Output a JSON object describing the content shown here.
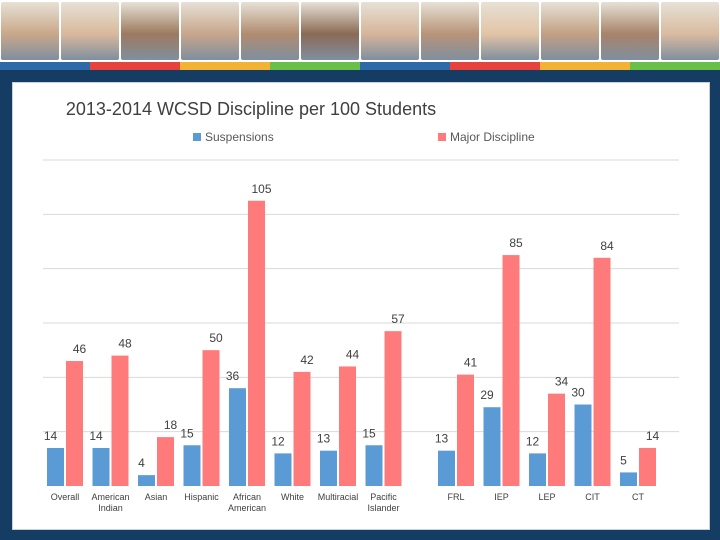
{
  "colors": {
    "frame": "#153d63",
    "suspensions": "#5b9bd5",
    "major_discipline": "#ff7b7b",
    "grid": "#d9d9d9",
    "banner_stripe": [
      "#2e6aa8",
      "#e8423f",
      "#f2b233",
      "#6abf4b",
      "#2e6aa8",
      "#e8423f",
      "#f2b233",
      "#6abf4b"
    ]
  },
  "chart_data": {
    "type": "bar",
    "title": "2013-2014 WCSD Discipline per 100 Students",
    "xlabel": "",
    "ylabel": "",
    "ylim": [
      0,
      120
    ],
    "grid": true,
    "legend_position": "top",
    "categories": [
      "Overall",
      "American Indian",
      "Asian",
      "Hispanic",
      "African American",
      "White",
      "Multiracial",
      "Pacific Islander",
      "FRL",
      "IEP",
      "LEP",
      "CIT",
      "CT"
    ],
    "category_lines": [
      [
        "Overall"
      ],
      [
        "American",
        "Indian"
      ],
      [
        "Asian"
      ],
      [
        "Hispanic"
      ],
      [
        "African",
        "American"
      ],
      [
        "White"
      ],
      [
        "Multiracial"
      ],
      [
        "Pacific",
        "Islander"
      ],
      [
        "FRL"
      ],
      [
        "IEP"
      ],
      [
        "LEP"
      ],
      [
        "CIT"
      ],
      [
        "CT"
      ]
    ],
    "series": [
      {
        "name": "Suspensions",
        "values": [
          14,
          14,
          4,
          15,
          36,
          12,
          13,
          15,
          13,
          29,
          12,
          30,
          5
        ]
      },
      {
        "name": "Major  Discipline",
        "values": [
          46,
          48,
          18,
          50,
          105,
          42,
          44,
          57,
          41,
          85,
          34,
          84,
          14
        ]
      }
    ]
  }
}
